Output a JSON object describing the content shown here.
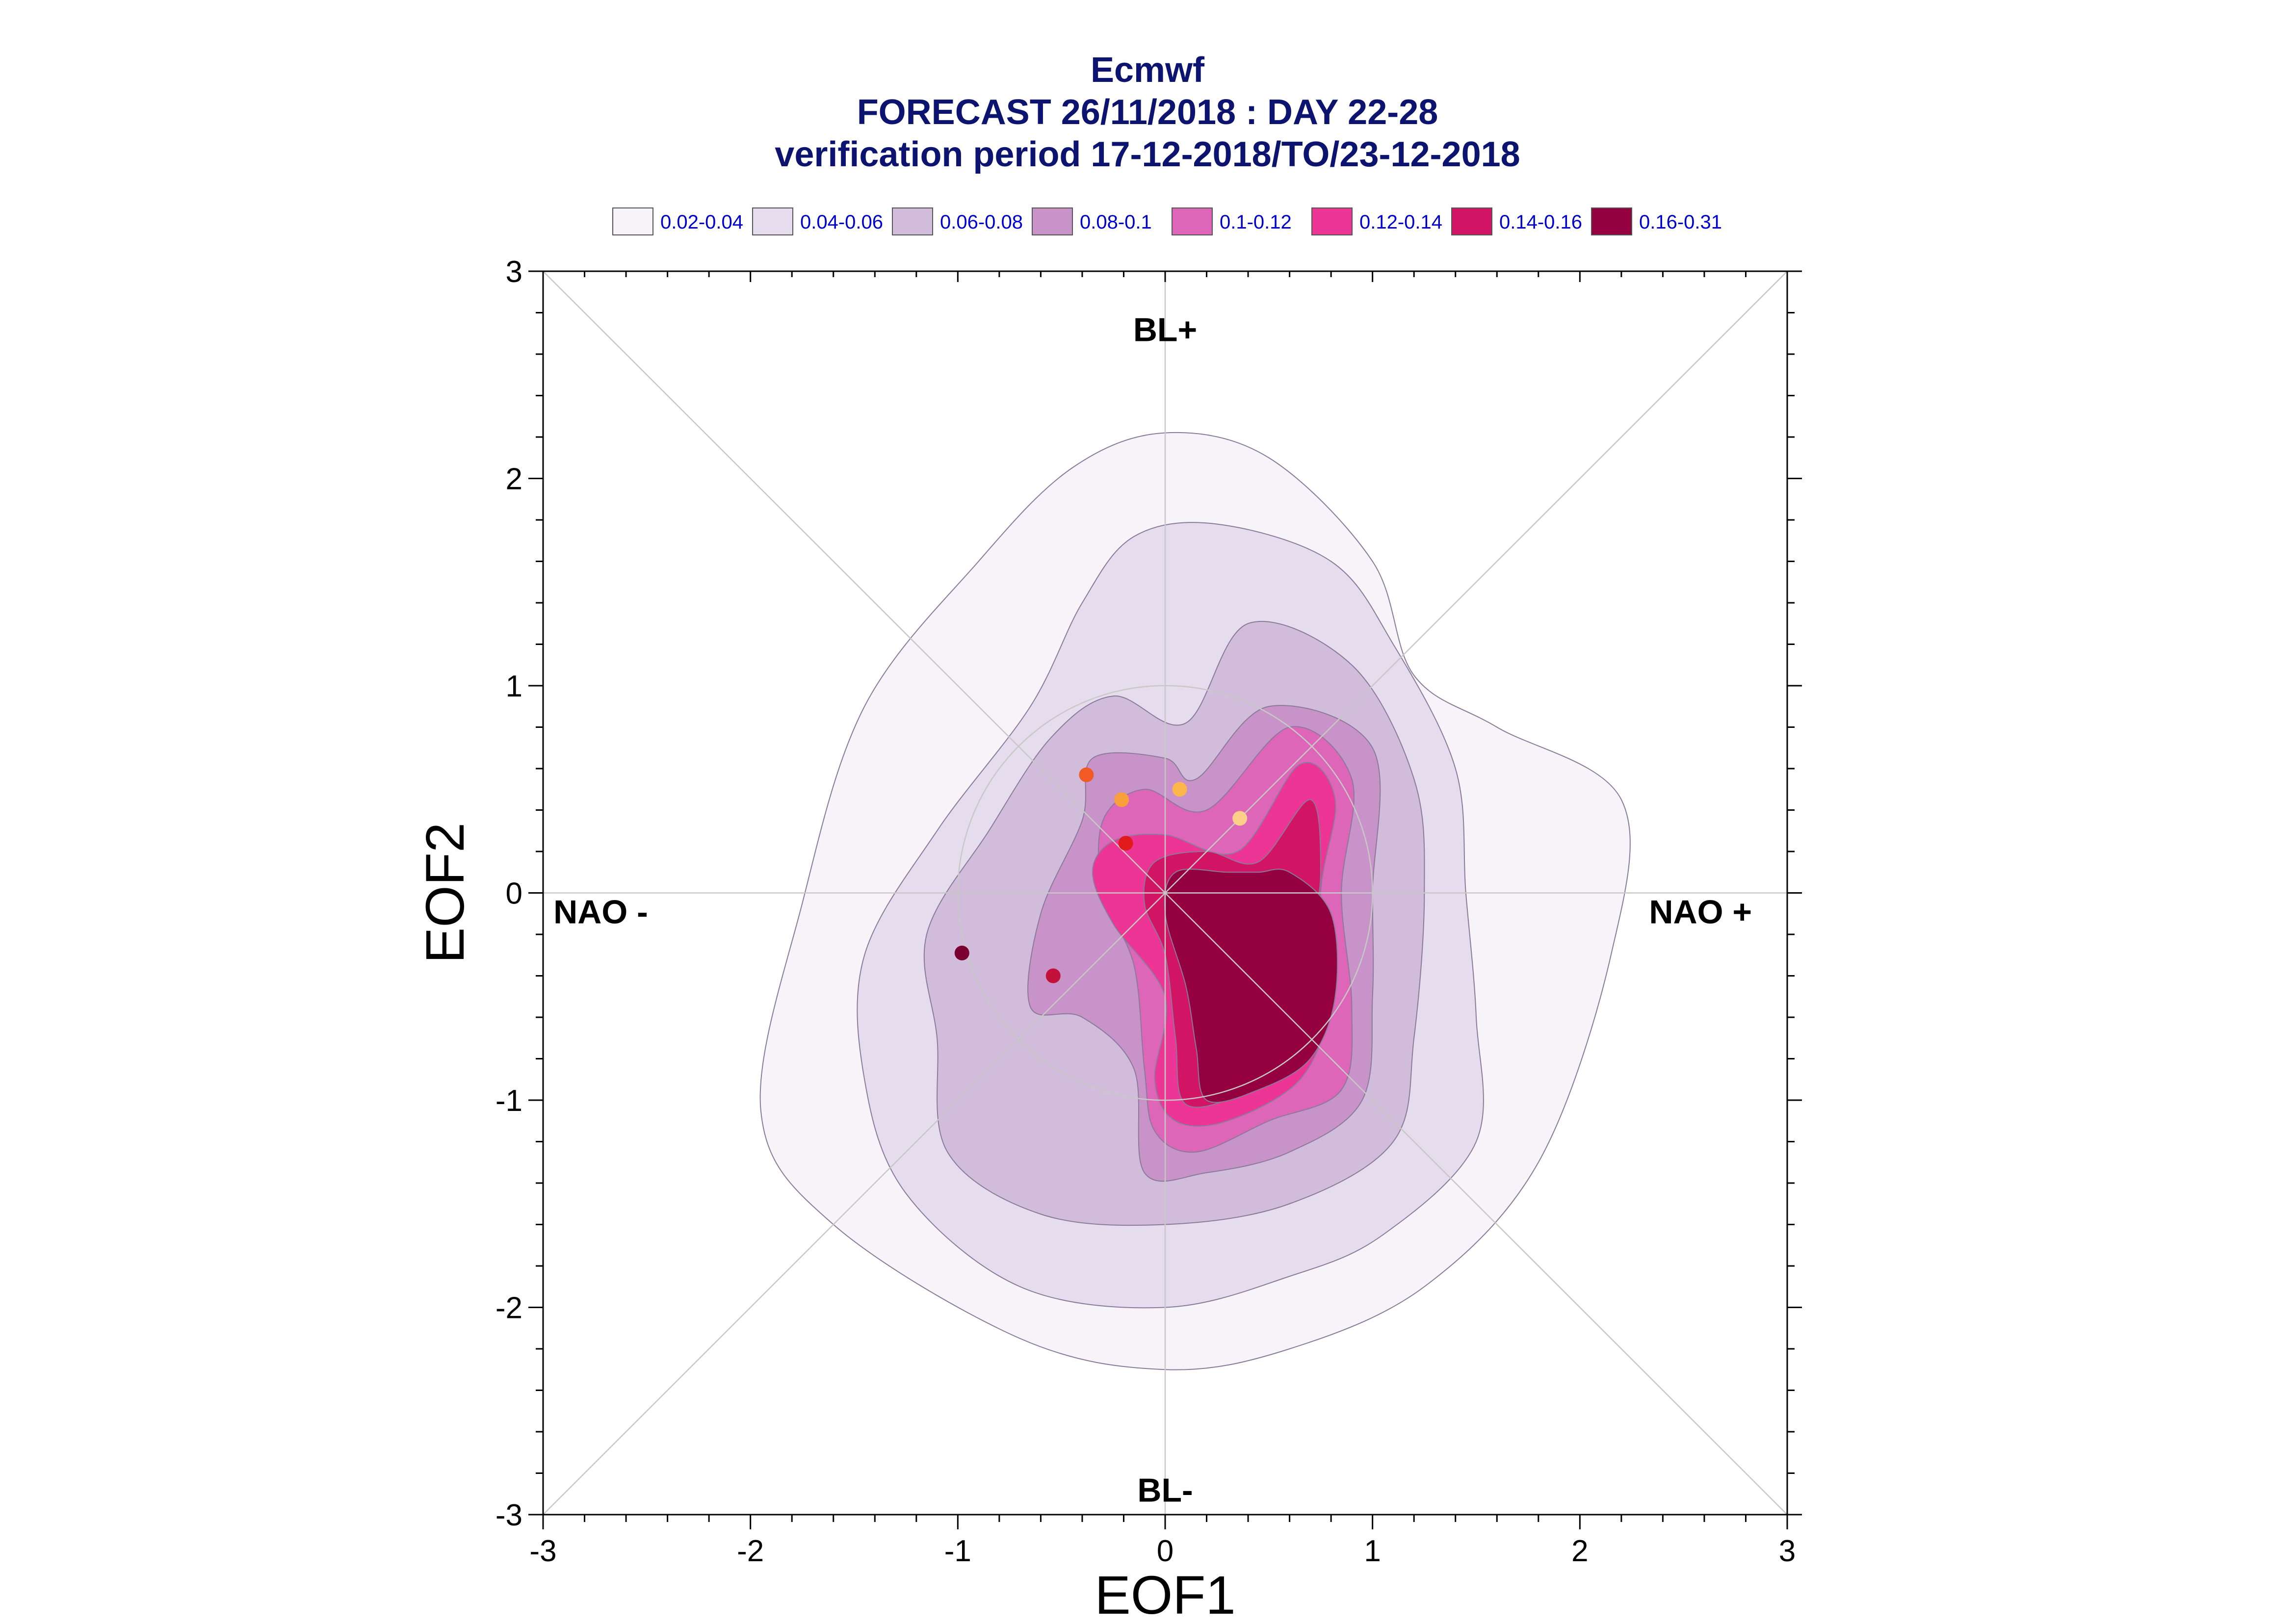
{
  "title": {
    "line1": "Ecmwf",
    "line2": "FORECAST 26/11/2018 : DAY 22-28",
    "line3": "verification period 17-12-2018/TO/23-12-2018"
  },
  "legend": [
    {
      "label": "0.02-0.04",
      "color": "#f6f3f9"
    },
    {
      "label": "0.04-0.06",
      "color": "#e5ddee"
    },
    {
      "label": "0.06-0.08",
      "color": "#d2bcdc"
    },
    {
      "label": "0.08-0.1",
      "color": "#c793c8"
    },
    {
      "label": "0.1-0.12",
      "color": "#dd66b8"
    },
    {
      "label": "0.12-0.14",
      "color": "#ec3594"
    },
    {
      "label": "0.14-0.16",
      "color": "#d11463"
    },
    {
      "label": "0.16-0.31",
      "color": "#950040"
    }
  ],
  "chart_data": {
    "type": "contour-scatter",
    "xlabel": "EOF1",
    "ylabel": "EOF2",
    "xlim": [
      -3,
      3
    ],
    "ylim": [
      -3,
      3
    ],
    "xticks": [
      "-3",
      "-2",
      "-1",
      "0",
      "1",
      "2",
      "3"
    ],
    "yticks": [
      "-3",
      "-2",
      "-1",
      "0",
      "1",
      "2",
      "3"
    ],
    "regime_labels": {
      "top": "BL+",
      "bottom": "BL-",
      "left": "NAO -",
      "right": "NAO +"
    },
    "unit_circle_radius": 1,
    "contour_levels": [
      {
        "range": "0.02-0.04",
        "boundary": [
          [
            0.0,
            2.22
          ],
          [
            0.5,
            2.1
          ],
          [
            1.0,
            1.6
          ],
          [
            1.2,
            1.05
          ],
          [
            1.6,
            0.8
          ],
          [
            2.2,
            0.45
          ],
          [
            2.15,
            -0.3
          ],
          [
            1.8,
            -1.3
          ],
          [
            1.25,
            -1.9
          ],
          [
            0.6,
            -2.2
          ],
          [
            0.0,
            -2.3
          ],
          [
            -0.7,
            -2.15
          ],
          [
            -1.6,
            -1.6
          ],
          [
            -1.95,
            -1.05
          ],
          [
            -1.75,
            -0.05
          ],
          [
            -1.45,
            0.9
          ],
          [
            -0.9,
            1.6
          ],
          [
            -0.45,
            2.05
          ]
        ]
      },
      {
        "range": "0.04-0.06",
        "boundary": [
          [
            0.25,
            1.78
          ],
          [
            0.8,
            1.6
          ],
          [
            1.1,
            1.2
          ],
          [
            1.4,
            0.6
          ],
          [
            1.45,
            0.0
          ],
          [
            1.5,
            -0.6
          ],
          [
            1.5,
            -1.2
          ],
          [
            1.05,
            -1.65
          ],
          [
            0.6,
            -1.85
          ],
          [
            0.0,
            -2.0
          ],
          [
            -0.7,
            -1.9
          ],
          [
            -1.25,
            -1.45
          ],
          [
            -1.45,
            -0.9
          ],
          [
            -1.45,
            -0.3
          ],
          [
            -1.1,
            0.3
          ],
          [
            -0.65,
            0.9
          ],
          [
            -0.4,
            1.4
          ],
          [
            -0.15,
            1.72
          ]
        ]
      },
      {
        "range": "0.06-0.08",
        "boundary": [
          [
            0.4,
            1.3
          ],
          [
            0.9,
            1.1
          ],
          [
            1.2,
            0.55
          ],
          [
            1.25,
            0.0
          ],
          [
            1.2,
            -0.7
          ],
          [
            1.1,
            -1.2
          ],
          [
            0.6,
            -1.5
          ],
          [
            0.0,
            -1.6
          ],
          [
            -0.6,
            -1.55
          ],
          [
            -1.05,
            -1.25
          ],
          [
            -1.1,
            -0.7
          ],
          [
            -1.15,
            -0.2
          ],
          [
            -0.85,
            0.3
          ],
          [
            -0.55,
            0.75
          ],
          [
            -0.25,
            0.95
          ],
          [
            0.1,
            0.82
          ]
        ]
      },
      {
        "range": "0.08-0.1",
        "boundary": [
          [
            0.5,
            0.9
          ],
          [
            1.0,
            0.7
          ],
          [
            1.0,
            0.0
          ],
          [
            1.0,
            -0.5
          ],
          [
            0.95,
            -1.0
          ],
          [
            0.6,
            -1.25
          ],
          [
            0.2,
            -1.35
          ],
          [
            -0.1,
            -1.35
          ],
          [
            -0.15,
            -0.85
          ],
          [
            -0.4,
            -0.6
          ],
          [
            -0.65,
            -0.55
          ],
          [
            -0.6,
            -0.1
          ],
          [
            -0.4,
            0.35
          ],
          [
            -0.35,
            0.65
          ],
          [
            0.0,
            0.65
          ],
          [
            0.15,
            0.55
          ]
        ]
      },
      {
        "range": "0.1-0.12",
        "boundary": [
          [
            0.6,
            0.8
          ],
          [
            0.9,
            0.55
          ],
          [
            0.85,
            0.0
          ],
          [
            0.9,
            -0.55
          ],
          [
            0.85,
            -0.95
          ],
          [
            0.5,
            -1.1
          ],
          [
            0.15,
            -1.25
          ],
          [
            -0.05,
            -1.15
          ],
          [
            -0.1,
            -0.85
          ],
          [
            -0.15,
            -0.35
          ],
          [
            -0.3,
            0.0
          ],
          [
            -0.3,
            0.35
          ],
          [
            -0.1,
            0.5
          ],
          [
            0.2,
            0.4
          ]
        ]
      },
      {
        "range": "0.12-0.14",
        "boundary": [
          [
            0.65,
            0.62
          ],
          [
            0.82,
            0.45
          ],
          [
            0.75,
            0.0
          ],
          [
            0.78,
            -0.55
          ],
          [
            0.65,
            -0.9
          ],
          [
            0.3,
            -1.1
          ],
          [
            0.05,
            -1.1
          ],
          [
            -0.05,
            -0.9
          ],
          [
            0.0,
            -0.5
          ],
          [
            -0.25,
            -0.15
          ],
          [
            -0.35,
            0.1
          ],
          [
            -0.25,
            0.25
          ],
          [
            0.0,
            0.28
          ],
          [
            0.35,
            0.2
          ]
        ]
      },
      {
        "range": "0.14-0.16",
        "boundary": [
          [
            0.7,
            0.45
          ],
          [
            0.75,
            0.1
          ],
          [
            0.7,
            -0.3
          ],
          [
            0.72,
            -0.7
          ],
          [
            0.4,
            -0.95
          ],
          [
            0.1,
            -1.02
          ],
          [
            0.05,
            -0.7
          ],
          [
            0.0,
            -0.3
          ],
          [
            -0.1,
            -0.05
          ],
          [
            -0.05,
            0.15
          ],
          [
            0.2,
            0.2
          ],
          [
            0.45,
            0.15
          ]
        ]
      },
      {
        "range": "0.16-0.31",
        "boundary": [
          [
            0.6,
            0.1
          ],
          [
            0.8,
            -0.1
          ],
          [
            0.82,
            -0.5
          ],
          [
            0.7,
            -0.8
          ],
          [
            0.45,
            -0.95
          ],
          [
            0.2,
            -1.0
          ],
          [
            0.15,
            -0.75
          ],
          [
            0.1,
            -0.45
          ],
          [
            0.0,
            -0.1
          ],
          [
            0.05,
            0.1
          ],
          [
            0.3,
            0.1
          ],
          [
            0.45,
            0.1
          ]
        ]
      }
    ],
    "points": [
      {
        "x": 0.07,
        "y": 0.5,
        "color": "#fcb64c"
      },
      {
        "x": 0.36,
        "y": 0.36,
        "color": "#fdd08a"
      },
      {
        "x": -0.38,
        "y": 0.57,
        "color": "#f15a24"
      },
      {
        "x": -0.21,
        "y": 0.45,
        "color": "#f9a03c"
      },
      {
        "x": -0.19,
        "y": 0.24,
        "color": "#e31a1c"
      },
      {
        "x": -0.54,
        "y": -0.4,
        "color": "#c4113a"
      },
      {
        "x": -0.98,
        "y": -0.29,
        "color": "#7a0030"
      }
    ]
  }
}
